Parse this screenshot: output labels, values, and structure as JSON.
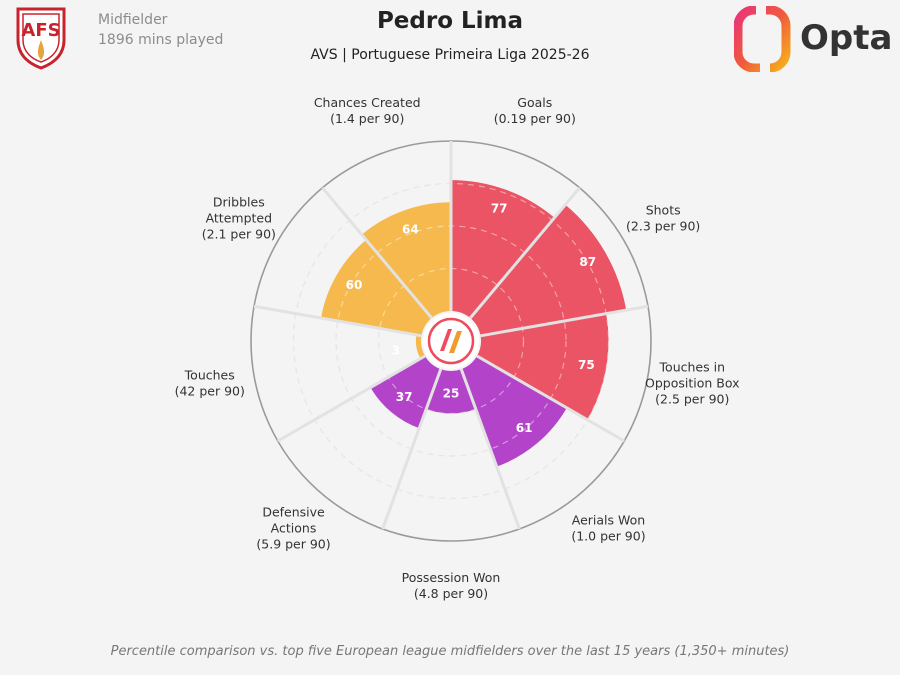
{
  "header": {
    "title": "Pedro Lima",
    "subtitle": "AVS | Portuguese Primeira Liga 2025-26",
    "position": "Midfielder",
    "minutes": "1896 mins played"
  },
  "branding": {
    "provider": "Opta",
    "club_logo_text": "AFS"
  },
  "footnote": "Percentile comparison vs. top five European league midfielders over the last 15 years (1,350+ minutes)",
  "colors": {
    "attacking": "#ea5464",
    "possession": "#f6b94e",
    "defending": "#b344c9",
    "background": "#f4f4f4"
  },
  "chart_data": {
    "type": "polar-bar",
    "scale": [
      0,
      100
    ],
    "categories": [
      {
        "name": "Goals",
        "detail": "(0.19 per 90)",
        "value": 77,
        "group": "attacking"
      },
      {
        "name": "Shots",
        "detail": "(2.3 per 90)",
        "value": 87,
        "group": "attacking"
      },
      {
        "name": "Touches in Opposition Box",
        "lines": [
          "Touches in",
          "Opposition Box"
        ],
        "detail": "(2.5 per 90)",
        "value": 75,
        "group": "attacking"
      },
      {
        "name": "Aerials Won",
        "detail": "(1.0 per 90)",
        "value": 61,
        "group": "defending"
      },
      {
        "name": "Possession Won",
        "detail": "(4.8 per 90)",
        "value": 25,
        "group": "defending"
      },
      {
        "name": "Defensive Actions",
        "lines": [
          "Defensive",
          "Actions"
        ],
        "detail": "(5.9 per 90)",
        "value": 37,
        "group": "defending"
      },
      {
        "name": "Touches",
        "detail": "(42 per 90)",
        "value": 3,
        "group": "possession"
      },
      {
        "name": "Dribbles Attempted",
        "lines": [
          "Dribbles",
          "Attempted"
        ],
        "detail": "(2.1 per 90)",
        "value": 60,
        "group": "possession"
      },
      {
        "name": "Chances Created",
        "detail": "(1.4 per 90)",
        "value": 64,
        "group": "possession"
      }
    ]
  }
}
